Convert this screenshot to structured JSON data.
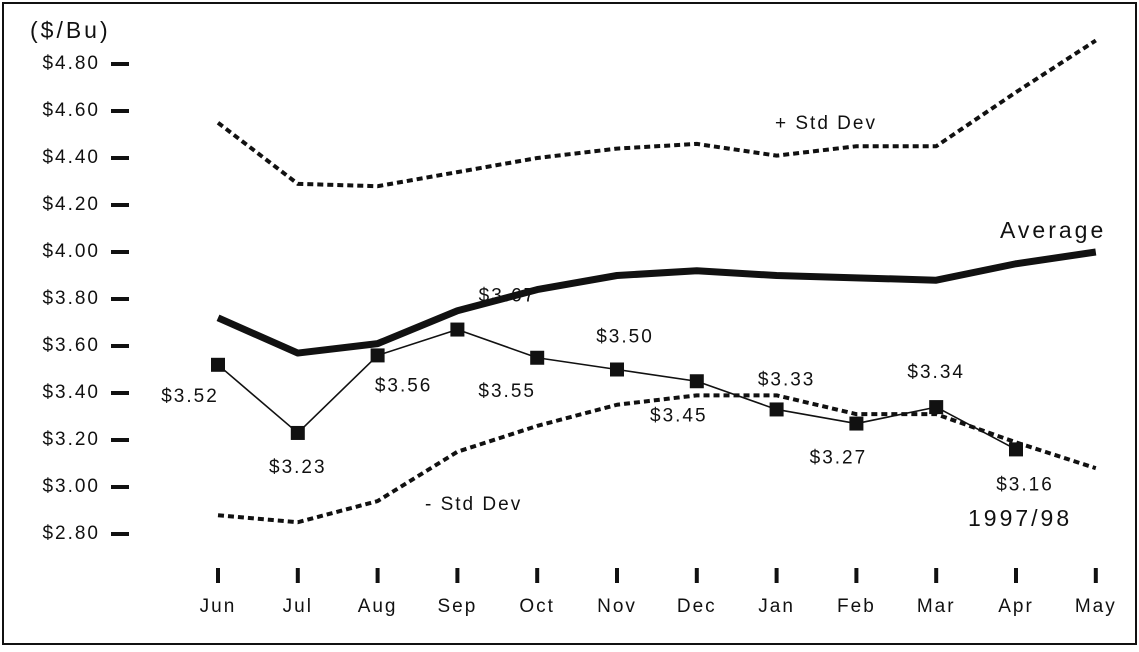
{
  "chart_data": {
    "type": "line",
    "y_label": "($/Bu)",
    "categories": [
      "Jun",
      "Jul",
      "Aug",
      "Sep",
      "Oct",
      "Nov",
      "Dec",
      "Jan",
      "Feb",
      "Mar",
      "Apr",
      "May"
    ],
    "ylim": [
      2.8,
      4.8
    ],
    "yticks": [
      {
        "value": 2.8,
        "label": "$2.80"
      },
      {
        "value": 3.0,
        "label": "$3.00"
      },
      {
        "value": 3.2,
        "label": "$3.20"
      },
      {
        "value": 3.4,
        "label": "$3.40"
      },
      {
        "value": 3.6,
        "label": "$3.60"
      },
      {
        "value": 3.8,
        "label": "$3.80"
      },
      {
        "value": 4.0,
        "label": "$4.00"
      },
      {
        "value": 4.2,
        "label": "$4.20"
      },
      {
        "value": 4.4,
        "label": "$4.40"
      },
      {
        "value": 4.6,
        "label": "$4.60"
      },
      {
        "value": 4.8,
        "label": "$4.80"
      }
    ],
    "series": [
      {
        "name": "+ Std Dev",
        "color": "#111111",
        "style": "dotted",
        "values": [
          4.55,
          4.29,
          4.28,
          4.34,
          4.4,
          4.44,
          4.46,
          4.41,
          4.45,
          4.45,
          4.68,
          4.9
        ]
      },
      {
        "name": "Average",
        "color": "#111111",
        "style": "thick",
        "values": [
          3.72,
          3.57,
          3.61,
          3.75,
          3.84,
          3.9,
          3.92,
          3.9,
          3.89,
          3.88,
          3.95,
          4.0
        ]
      },
      {
        "name": "- Std Dev",
        "color": "#111111",
        "style": "dotted",
        "values": [
          2.88,
          2.85,
          2.94,
          3.15,
          3.26,
          3.35,
          3.39,
          3.39,
          3.31,
          3.31,
          3.19,
          3.08
        ]
      },
      {
        "name": "1997/98",
        "color": "#111111",
        "style": "markers",
        "values": [
          3.52,
          3.23,
          3.56,
          3.67,
          3.55,
          3.5,
          3.45,
          3.33,
          3.27,
          3.34,
          3.16,
          null
        ],
        "value_labels": [
          "$3.52",
          "$3.23",
          "$3.56",
          "$3.67",
          "$3.55",
          "$3.50",
          "$3.45",
          "$3.33",
          "$3.27",
          "$3.34",
          "$3.16",
          null
        ]
      }
    ]
  }
}
